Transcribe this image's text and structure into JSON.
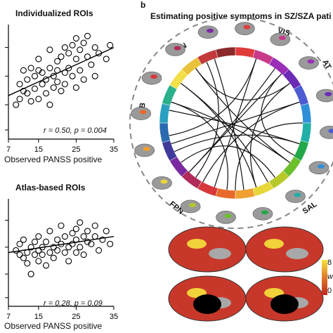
{
  "panel_b": {
    "letter": "b",
    "title": "Estimating positive symptoms in SZ/SZA pati",
    "network_labels": [
      "DN",
      "VIS",
      "AT",
      "LMB",
      "FPN",
      "SAL"
    ],
    "colorbar_ticks": [
      "8",
      "w",
      "0"
    ]
  },
  "chart_data": [
    {
      "type": "scatter",
      "title": "Individualized ROIs",
      "xlabel": "Observed PANSS positive",
      "ylabel": "",
      "xticks": [
        7,
        15,
        25,
        35
      ],
      "xlim": [
        7,
        35
      ],
      "ylim": [
        0,
        1
      ],
      "annotation": "r = 0.50, p = 0.004",
      "points": [
        [
          9,
          0.3
        ],
        [
          10,
          0.35
        ],
        [
          10,
          0.48
        ],
        [
          11,
          0.42
        ],
        [
          11,
          0.6
        ],
        [
          12,
          0.52
        ],
        [
          12,
          0.4
        ],
        [
          13,
          0.62
        ],
        [
          13,
          0.33
        ],
        [
          14,
          0.55
        ],
        [
          14,
          0.44
        ],
        [
          15,
          0.7
        ],
        [
          15,
          0.35
        ],
        [
          15,
          0.6
        ],
        [
          16,
          0.48
        ],
        [
          16,
          0.58
        ],
        [
          17,
          0.52
        ],
        [
          17,
          0.4
        ],
        [
          18,
          0.62
        ],
        [
          18,
          0.3
        ],
        [
          18,
          0.78
        ],
        [
          19,
          0.55
        ],
        [
          19,
          0.45
        ],
        [
          20,
          0.68
        ],
        [
          20,
          0.5
        ],
        [
          20,
          0.6
        ],
        [
          21,
          0.72
        ],
        [
          21,
          0.42
        ],
        [
          22,
          0.58
        ],
        [
          22,
          0.8
        ],
        [
          22,
          0.48
        ],
        [
          23,
          0.75
        ],
        [
          23,
          0.62
        ],
        [
          24,
          0.82
        ],
        [
          24,
          0.55
        ],
        [
          25,
          0.7
        ],
        [
          25,
          0.88
        ],
        [
          25,
          0.45
        ],
        [
          26,
          0.78
        ],
        [
          26,
          0.6
        ],
        [
          27,
          0.84
        ],
        [
          27,
          0.52
        ],
        [
          28,
          0.72
        ],
        [
          28,
          0.9
        ],
        [
          29,
          0.65
        ],
        [
          30,
          0.8
        ],
        [
          30,
          0.55
        ],
        [
          31,
          0.75
        ],
        [
          33,
          0.7
        ],
        [
          34,
          0.82
        ]
      ],
      "trend": [
        [
          7,
          0.38
        ],
        [
          35,
          0.8
        ]
      ]
    },
    {
      "type": "scatter",
      "title": "Atlas-based ROIs",
      "xlabel": "Observed PANSS positive",
      "ylabel": "",
      "xticks": [
        7,
        15,
        25,
        35
      ],
      "xlim": [
        7,
        35
      ],
      "ylim": [
        0,
        1
      ],
      "annotation": "r = 0.28, p = 0.09",
      "points": [
        [
          9,
          0.52
        ],
        [
          10,
          0.48
        ],
        [
          10,
          0.58
        ],
        [
          11,
          0.45
        ],
        [
          11,
          0.62
        ],
        [
          12,
          0.5
        ],
        [
          12,
          0.4
        ],
        [
          13,
          0.55
        ],
        [
          13,
          0.3
        ],
        [
          14,
          0.6
        ],
        [
          14,
          0.48
        ],
        [
          15,
          0.52
        ],
        [
          15,
          0.65
        ],
        [
          15,
          0.42
        ],
        [
          16,
          0.55
        ],
        [
          16,
          0.48
        ],
        [
          17,
          0.6
        ],
        [
          17,
          0.38
        ],
        [
          18,
          0.5
        ],
        [
          18,
          0.7
        ],
        [
          19,
          0.55
        ],
        [
          19,
          0.45
        ],
        [
          20,
          0.62
        ],
        [
          20,
          0.52
        ],
        [
          21,
          0.58
        ],
        [
          21,
          0.75
        ],
        [
          22,
          0.5
        ],
        [
          22,
          0.65
        ],
        [
          23,
          0.55
        ],
        [
          23,
          0.42
        ],
        [
          24,
          0.68
        ],
        [
          24,
          0.58
        ],
        [
          25,
          0.62
        ],
        [
          25,
          0.72
        ],
        [
          25,
          0.5
        ],
        [
          26,
          0.55
        ],
        [
          26,
          0.78
        ],
        [
          27,
          0.65
        ],
        [
          27,
          0.48
        ],
        [
          28,
          0.6
        ],
        [
          28,
          0.7
        ],
        [
          29,
          0.58
        ],
        [
          30,
          0.65
        ],
        [
          30,
          0.75
        ],
        [
          31,
          0.52
        ],
        [
          32,
          0.62
        ],
        [
          33,
          0.7
        ],
        [
          34,
          0.58
        ]
      ],
      "trend": [
        [
          7,
          0.5
        ],
        [
          35,
          0.65
        ]
      ]
    }
  ]
}
